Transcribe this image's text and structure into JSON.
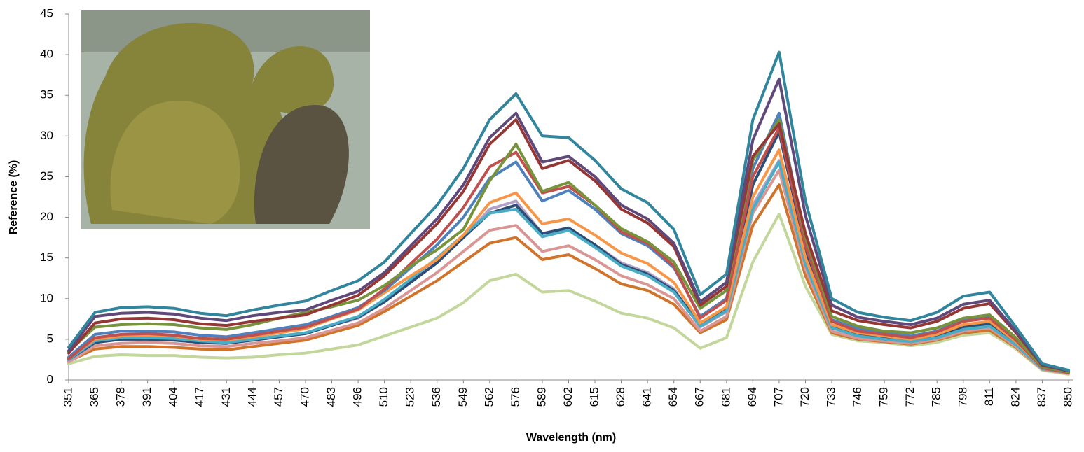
{
  "chart_data": {
    "type": "line",
    "y_label": "Reference (%)",
    "x_label": "Wavelength (nm)",
    "categories": [
      "351",
      "365",
      "378",
      "391",
      "404",
      "417",
      "431",
      "444",
      "457",
      "470",
      "483",
      "496",
      "510",
      "523",
      "536",
      "549",
      "562",
      "576",
      "589",
      "602",
      "615",
      "628",
      "641",
      "654",
      "667",
      "681",
      "694",
      "707",
      "720",
      "733",
      "746",
      "759",
      "772",
      "785",
      "798",
      "811",
      "824",
      "837",
      "850"
    ],
    "ylim": [
      0,
      45
    ],
    "yticks": [
      0,
      5,
      10,
      15,
      20,
      25,
      30,
      35,
      40,
      45
    ],
    "grid": false,
    "series": [
      {
        "color": "#C3D69B",
        "values": [
          2.0,
          2.9,
          3.1,
          3.0,
          3.0,
          2.8,
          2.7,
          2.8,
          3.1,
          3.3,
          3.8,
          4.3,
          5.4,
          6.5,
          7.6,
          9.5,
          12.2,
          13.0,
          10.8,
          11.0,
          9.7,
          8.2,
          7.6,
          6.4,
          3.9,
          5.2,
          14.5,
          20.4,
          11.5,
          5.6,
          4.8,
          4.6,
          4.2,
          4.6,
          5.5,
          5.8,
          3.8,
          1.2,
          0.7
        ]
      },
      {
        "color": "#D0742C",
        "values": [
          2.3,
          3.8,
          4.1,
          4.1,
          4.0,
          3.8,
          3.7,
          4.1,
          4.5,
          4.9,
          5.8,
          6.7,
          8.4,
          10.3,
          12.2,
          14.5,
          16.8,
          17.5,
          14.8,
          15.4,
          13.7,
          11.8,
          11.0,
          9.3,
          5.8,
          7.4,
          19.0,
          24.0,
          12.8,
          5.8,
          5.0,
          4.7,
          4.4,
          4.9,
          5.8,
          6.1,
          4.0,
          1.3,
          0.8
        ]
      },
      {
        "color": "#D99694",
        "values": [
          2.2,
          4.2,
          4.5,
          4.6,
          4.5,
          4.2,
          4.1,
          4.5,
          4.8,
          5.2,
          6.1,
          7.0,
          8.8,
          11.0,
          13.2,
          15.8,
          18.4,
          19.0,
          15.8,
          16.5,
          14.8,
          12.8,
          11.7,
          10.0,
          6.0,
          7.8,
          20.5,
          25.8,
          13.6,
          6.0,
          5.1,
          4.8,
          4.5,
          5.0,
          6.0,
          6.4,
          4.1,
          1.3,
          0.8
        ]
      },
      {
        "color": "#B3A2C7",
        "values": [
          2.4,
          4.6,
          5.0,
          5.0,
          4.9,
          4.6,
          4.5,
          4.9,
          5.3,
          5.7,
          6.7,
          7.6,
          9.6,
          12.0,
          14.5,
          17.5,
          21.0,
          22.0,
          18.0,
          18.5,
          16.6,
          14.4,
          13.2,
          11.2,
          6.5,
          8.4,
          21.5,
          27.0,
          14.5,
          6.5,
          5.5,
          5.1,
          4.8,
          5.3,
          6.4,
          6.8,
          4.4,
          1.4,
          0.9
        ]
      },
      {
        "color": "#2C4D75",
        "values": [
          2.5,
          4.6,
          5.0,
          5.0,
          4.9,
          4.6,
          4.5,
          4.9,
          5.3,
          5.7,
          6.7,
          7.7,
          9.6,
          12.0,
          14.4,
          17.5,
          20.5,
          21.5,
          18.0,
          18.7,
          16.6,
          14.2,
          13.0,
          11.0,
          6.8,
          8.8,
          24.0,
          30.5,
          16.0,
          6.6,
          5.6,
          5.2,
          4.9,
          5.4,
          6.5,
          6.9,
          4.5,
          1.4,
          0.9
        ]
      },
      {
        "color": "#4BACC6",
        "values": [
          2.5,
          4.8,
          5.2,
          5.2,
          5.1,
          4.8,
          4.6,
          5.0,
          5.4,
          5.8,
          6.8,
          7.8,
          9.9,
          12.4,
          15.0,
          17.8,
          20.5,
          21.0,
          17.6,
          18.4,
          16.3,
          14.0,
          12.8,
          10.8,
          6.6,
          8.5,
          21.0,
          26.8,
          14.2,
          6.4,
          5.4,
          5.0,
          4.7,
          5.2,
          6.2,
          6.6,
          4.3,
          1.4,
          0.9
        ]
      },
      {
        "color": "#F79646",
        "values": [
          2.7,
          5.0,
          5.4,
          5.5,
          5.4,
          5.0,
          4.9,
          5.3,
          5.8,
          6.3,
          7.5,
          8.6,
          10.7,
          12.8,
          14.8,
          17.8,
          21.8,
          23.0,
          19.2,
          19.8,
          17.8,
          15.6,
          14.3,
          12.0,
          7.0,
          9.0,
          22.5,
          28.3,
          15.0,
          6.8,
          5.8,
          5.4,
          5.0,
          5.6,
          6.8,
          7.2,
          4.7,
          1.5,
          0.9
        ]
      },
      {
        "color": "#4F81BD",
        "values": [
          2.8,
          5.6,
          6.0,
          6.0,
          5.9,
          5.5,
          5.3,
          5.8,
          6.3,
          6.8,
          7.8,
          8.9,
          11.0,
          13.8,
          16.6,
          20.0,
          24.8,
          26.8,
          22.0,
          23.3,
          21.0,
          18.0,
          16.5,
          13.8,
          7.8,
          10.0,
          26.0,
          32.8,
          17.0,
          7.4,
          6.3,
          5.8,
          5.4,
          6.0,
          7.4,
          7.8,
          5.0,
          1.6,
          1.0
        ]
      },
      {
        "color": "#C0504D",
        "values": [
          2.6,
          5.2,
          5.6,
          5.7,
          5.5,
          5.1,
          5.0,
          5.5,
          6.0,
          6.5,
          7.6,
          8.7,
          11.2,
          14.3,
          17.3,
          21.2,
          26.2,
          28.0,
          23.0,
          23.8,
          21.5,
          18.2,
          16.8,
          14.0,
          7.6,
          9.8,
          25.0,
          31.0,
          16.5,
          7.2,
          6.0,
          5.6,
          5.2,
          5.9,
          7.2,
          7.6,
          4.9,
          1.5,
          0.9
        ]
      },
      {
        "color": "#77933C",
        "values": [
          3.5,
          6.5,
          6.8,
          6.9,
          6.8,
          6.4,
          6.2,
          6.8,
          7.6,
          8.3,
          9.0,
          9.8,
          11.6,
          14.0,
          16.0,
          18.5,
          24.5,
          29.0,
          23.2,
          24.3,
          21.5,
          18.6,
          17.0,
          14.5,
          8.8,
          11.0,
          27.0,
          32.0,
          17.5,
          7.8,
          6.6,
          6.0,
          5.8,
          6.4,
          7.6,
          8.0,
          5.2,
          1.6,
          1.0
        ]
      },
      {
        "color": "#953735",
        "values": [
          3.3,
          7.0,
          7.5,
          7.6,
          7.4,
          6.9,
          6.7,
          7.2,
          7.6,
          8.0,
          9.2,
          10.4,
          12.8,
          16.0,
          19.2,
          23.2,
          29.0,
          32.0,
          26.0,
          27.0,
          24.5,
          21.0,
          19.3,
          16.4,
          9.2,
          11.5,
          27.5,
          31.5,
          18.0,
          8.5,
          7.3,
          6.8,
          6.4,
          7.2,
          8.8,
          9.4,
          5.8,
          1.8,
          1.1
        ]
      },
      {
        "color": "#5F497A",
        "values": [
          3.6,
          7.8,
          8.2,
          8.3,
          8.1,
          7.6,
          7.3,
          7.9,
          8.3,
          8.6,
          9.8,
          10.9,
          13.2,
          16.5,
          19.8,
          24.0,
          29.8,
          32.8,
          26.8,
          27.5,
          25.0,
          21.5,
          19.8,
          16.8,
          9.6,
          12.0,
          29.5,
          37.0,
          20.2,
          9.2,
          7.7,
          7.2,
          6.8,
          7.6,
          9.3,
          9.8,
          6.0,
          1.9,
          1.1
        ]
      },
      {
        "color": "#31859C",
        "values": [
          4.0,
          8.3,
          8.9,
          9.0,
          8.8,
          8.2,
          7.9,
          8.6,
          9.2,
          9.7,
          11.0,
          12.2,
          14.5,
          18.0,
          21.5,
          26.0,
          32.0,
          35.2,
          30.0,
          29.8,
          27.0,
          23.5,
          21.8,
          18.5,
          10.5,
          13.0,
          32.0,
          40.3,
          22.0,
          10.0,
          8.3,
          7.7,
          7.3,
          8.3,
          10.3,
          10.8,
          6.5,
          2.0,
          1.2
        ]
      }
    ]
  }
}
